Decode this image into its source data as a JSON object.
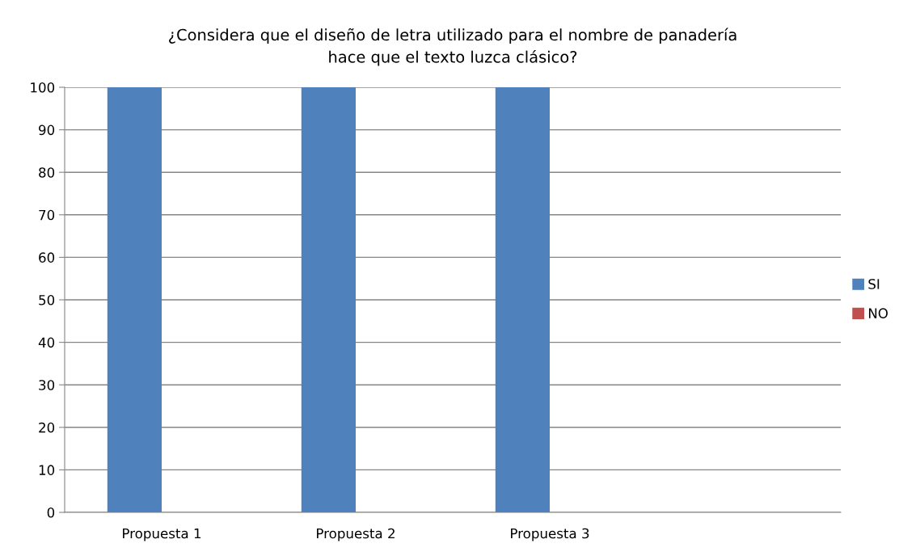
{
  "chart_data": {
    "type": "bar",
    "title": "¿Considera que el diseño de letra utilizado para el nombre de panadería\nhace que el texto luzca clásico?",
    "categories": [
      "Propuesta 1",
      "Propuesta 2",
      "Propuesta 3",
      null
    ],
    "series": [
      {
        "name": "SI",
        "color": "#4f81bd",
        "values": [
          100,
          100,
          100,
          null
        ]
      },
      {
        "name": "NO",
        "color": "#c0504d",
        "values": [
          0,
          0,
          0,
          null
        ]
      }
    ],
    "ylim": [
      0,
      100
    ],
    "yticks": [
      0,
      10,
      20,
      30,
      40,
      50,
      60,
      70,
      80,
      90,
      100
    ],
    "grid": "y",
    "legend": "right"
  }
}
